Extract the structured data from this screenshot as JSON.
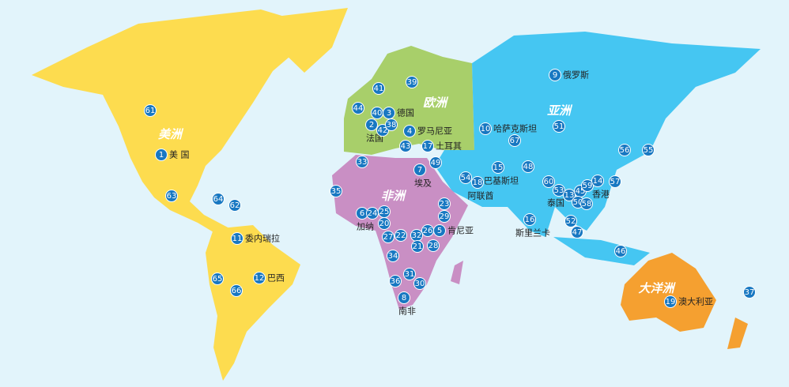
{
  "continents": [
    {
      "name": "美洲"
    },
    {
      "name": "欧洲"
    },
    {
      "name": "亚洲"
    },
    {
      "name": "非洲"
    },
    {
      "name": "大洋洲"
    }
  ],
  "markers": [
    {
      "number": 61
    },
    {
      "number": 1,
      "label": "美 国"
    },
    {
      "number": 63
    },
    {
      "number": 64
    },
    {
      "number": 62
    },
    {
      "number": 11,
      "label": "委内瑞拉"
    },
    {
      "number": 65
    },
    {
      "number": 12,
      "label": "巴西"
    },
    {
      "number": 66
    },
    {
      "number": 41
    },
    {
      "number": 39
    },
    {
      "number": 44
    },
    {
      "number": 40
    },
    {
      "number": 3,
      "label": "德国"
    },
    {
      "number": 2,
      "label": "法国"
    },
    {
      "number": 42
    },
    {
      "number": 38
    },
    {
      "number": 4,
      "label": "罗马尼亚"
    },
    {
      "number": 43
    },
    {
      "number": 17,
      "label": "土耳其"
    },
    {
      "number": 49
    },
    {
      "number": 33
    },
    {
      "number": 7,
      "label": "埃及"
    },
    {
      "number": 35
    },
    {
      "number": 6,
      "label": "加纳"
    },
    {
      "number": 24
    },
    {
      "number": 25
    },
    {
      "number": 20
    },
    {
      "number": 23
    },
    {
      "number": 29
    },
    {
      "number": 5,
      "label": "肯尼亚"
    },
    {
      "number": 27
    },
    {
      "number": 22
    },
    {
      "number": 32
    },
    {
      "number": 26
    },
    {
      "number": 21
    },
    {
      "number": 28
    },
    {
      "number": 34
    },
    {
      "number": 31
    },
    {
      "number": 36
    },
    {
      "number": 30
    },
    {
      "number": 8,
      "label": "南非"
    },
    {
      "number": 9,
      "label": "俄罗斯"
    },
    {
      "number": 10,
      "label": "哈萨克斯坦"
    },
    {
      "number": 51
    },
    {
      "number": 67
    },
    {
      "number": 56
    },
    {
      "number": 55
    },
    {
      "number": 54
    },
    {
      "number": 18,
      "label": "阿联酋"
    },
    {
      "number": 15,
      "label": "巴基斯坦"
    },
    {
      "number": 48
    },
    {
      "number": 60
    },
    {
      "number": 53
    },
    {
      "number": 13,
      "label": "泰国"
    },
    {
      "number": 45
    },
    {
      "number": 59
    },
    {
      "number": 14,
      "label": "香港"
    },
    {
      "number": 57
    },
    {
      "number": 50
    },
    {
      "number": 58
    },
    {
      "number": 16,
      "label": "斯里兰卡"
    },
    {
      "number": 52
    },
    {
      "number": 47
    },
    {
      "number": 46
    },
    {
      "number": 19,
      "label": "澳大利亚"
    },
    {
      "number": 37
    }
  ]
}
